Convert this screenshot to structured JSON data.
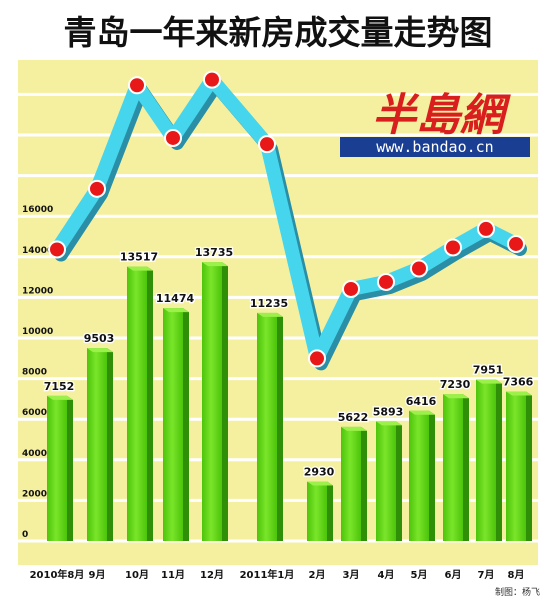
{
  "title": "青岛一年来新房成交量走势图",
  "watermark": {
    "logo_text": "半島網",
    "url": "www.bandao.cn"
  },
  "credit": "制图：杨飞",
  "colors": {
    "background": "#f5f0a0",
    "grid": "#ffffff",
    "bar_front": "#5fd80e",
    "bar_side": "#2f8f06",
    "bar_top": "#9bf04a",
    "line": "#45d6ee",
    "line_shadow": "#2a8fa6",
    "marker": "#e81818",
    "title": "#111111",
    "logo": "#d91e1e",
    "url_bg": "#1a3f92"
  },
  "chart_data": {
    "type": "bar",
    "categories": [
      "2010年8月",
      "9月",
      "10月",
      "11月",
      "12月",
      "2011年1月",
      "2月",
      "3月",
      "4月",
      "5月",
      "6月",
      "7月",
      "8月"
    ],
    "values": [
      7152,
      9503,
      13517,
      11474,
      13735,
      11235,
      2930,
      5622,
      5893,
      6416,
      7230,
      7951,
      7366
    ],
    "data_labels": [
      "7152",
      "9503",
      "13517",
      "11474",
      "13735",
      "11235",
      "2930",
      "5622",
      "5893",
      "6416",
      "7230",
      "7951",
      "7366"
    ],
    "y_ticks": [
      0,
      2000,
      4000,
      6000,
      8000,
      10000,
      12000,
      14000,
      16000
    ],
    "y_tick_labels": [
      "0",
      "2000",
      "4000",
      "6000",
      "8000",
      "10000",
      "12000",
      "14000",
      "16000"
    ],
    "ylim": [
      0,
      18500
    ],
    "grid": true,
    "overlay_line": {
      "type": "line",
      "description_values": [
        7152,
        9503,
        13517,
        11474,
        13735,
        11235,
        2930,
        5622,
        5893,
        6416,
        7230,
        7951,
        7366
      ]
    }
  }
}
